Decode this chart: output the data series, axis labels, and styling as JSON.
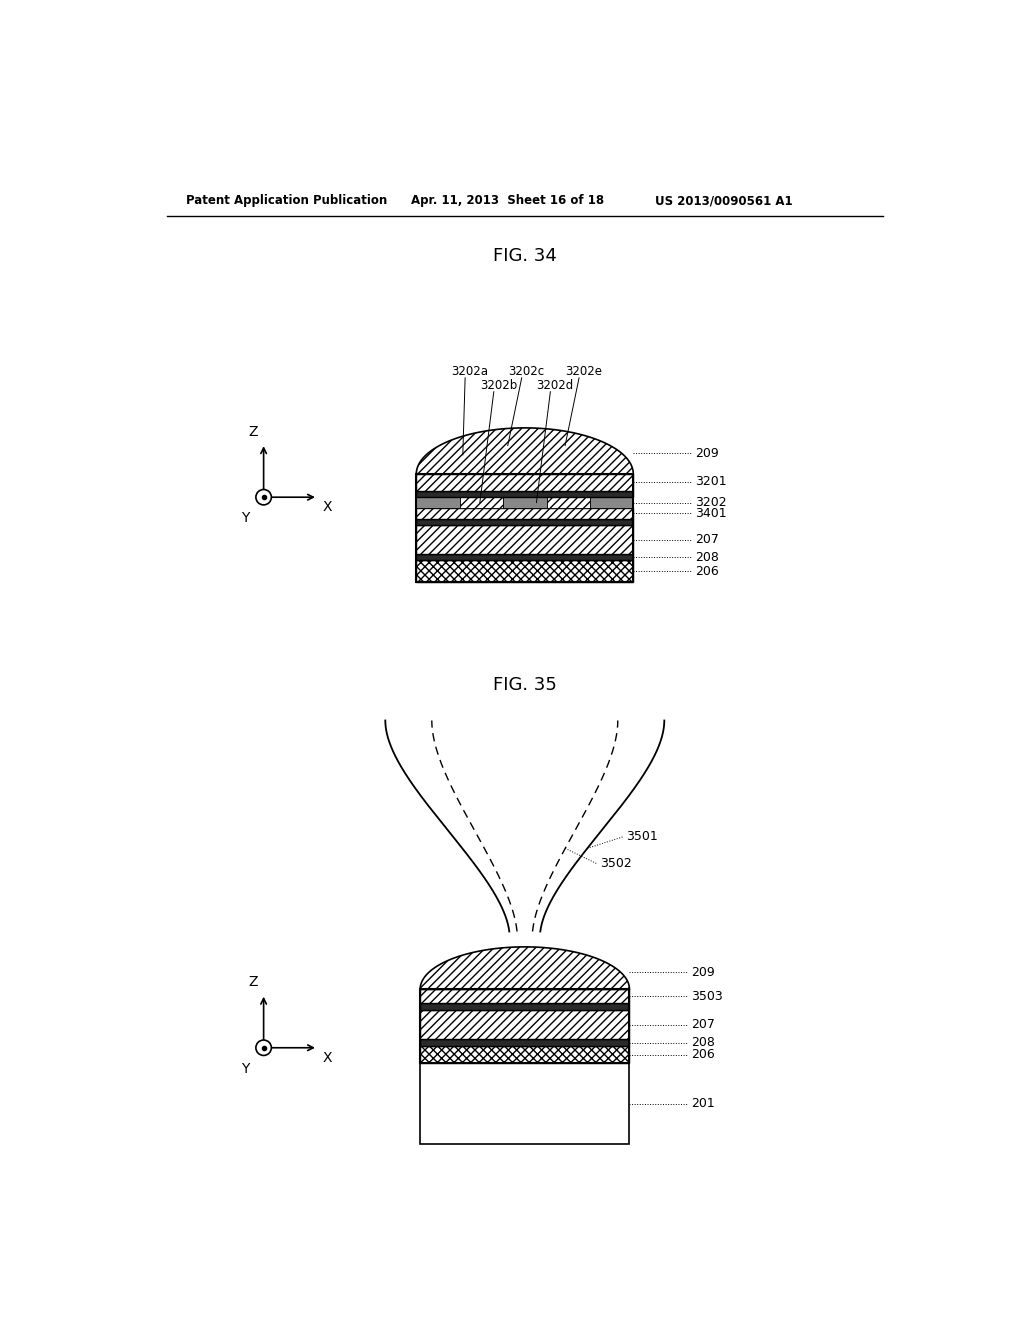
{
  "bg_color": "#ffffff",
  "header_left": "Patent Application Publication",
  "header_mid": "Apr. 11, 2013  Sheet 16 of 18",
  "header_right": "US 2013/0090561 A1",
  "fig34_title": "FIG. 34",
  "fig35_title": "FIG. 35"
}
